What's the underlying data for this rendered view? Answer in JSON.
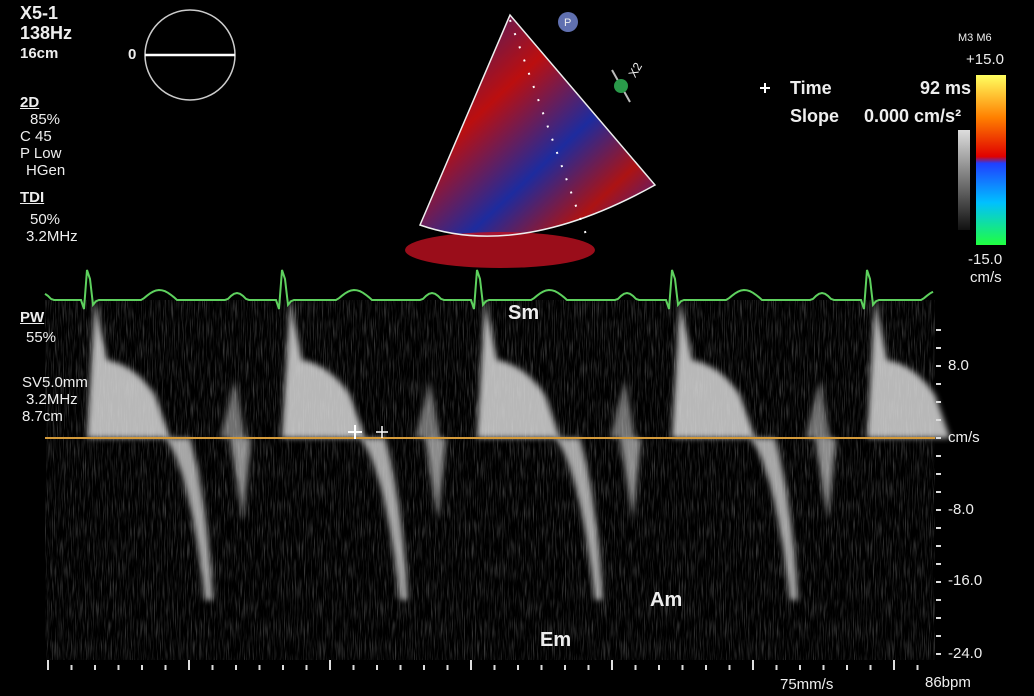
{
  "probe": {
    "model": "X5-1",
    "frame_rate": "138Hz",
    "depth": "16cm"
  },
  "angle_indicator": "0",
  "mode_2d": {
    "label": "2D",
    "gain": "85%",
    "compression": "C 45",
    "power": "P Low",
    "frequency": "HGen"
  },
  "tdi": {
    "label": "TDI",
    "gain": "50%",
    "frequency": "3.2MHz"
  },
  "pw": {
    "label": "PW",
    "gain": "55%",
    "sample_volume": "SV5.0mm",
    "frequency": "3.2MHz",
    "depth": "8.7cm"
  },
  "measurement": {
    "time_label": "Time",
    "time_value": "92 ms",
    "slope_label": "Slope",
    "slope_value": "0.000 cm/s²"
  },
  "color_scale": {
    "map": "M3 M6",
    "max": "+15.0",
    "min": "-15.0",
    "unit": "cm/s"
  },
  "zoom": "X2",
  "marker": "P",
  "waves": {
    "sm": "Sm",
    "am": "Am",
    "em": "Em"
  },
  "velocity_scale": {
    "labels": [
      "8.0",
      "cm/s",
      "-8.0",
      "-16.0",
      "-24.0"
    ]
  },
  "sweep_speed": "75mm/s",
  "heart_rate": "86bpm"
}
